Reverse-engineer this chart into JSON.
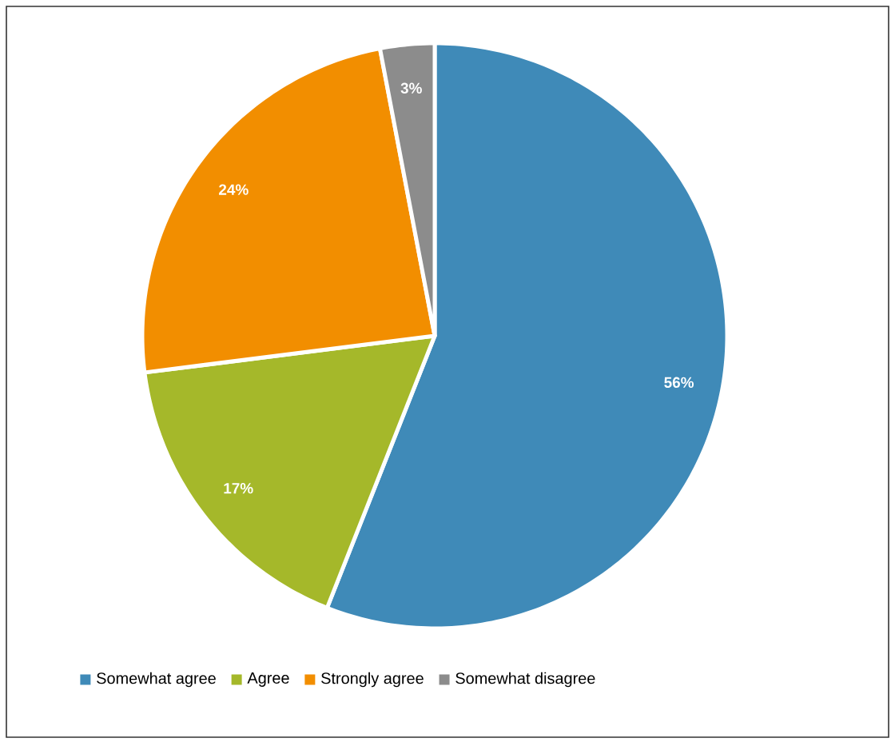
{
  "chart_data": {
    "type": "pie",
    "categories": [
      "Somewhat agree",
      "Agree",
      "Strongly agree",
      "Somewhat disagree"
    ],
    "values": [
      56,
      17,
      24,
      3
    ],
    "colors": [
      "#3f8ab8",
      "#a5b82a",
      "#f28e00",
      "#8c8c8c"
    ],
    "value_labels": [
      "56%",
      "17%",
      "24%",
      "3%"
    ],
    "legend": "bottom"
  }
}
